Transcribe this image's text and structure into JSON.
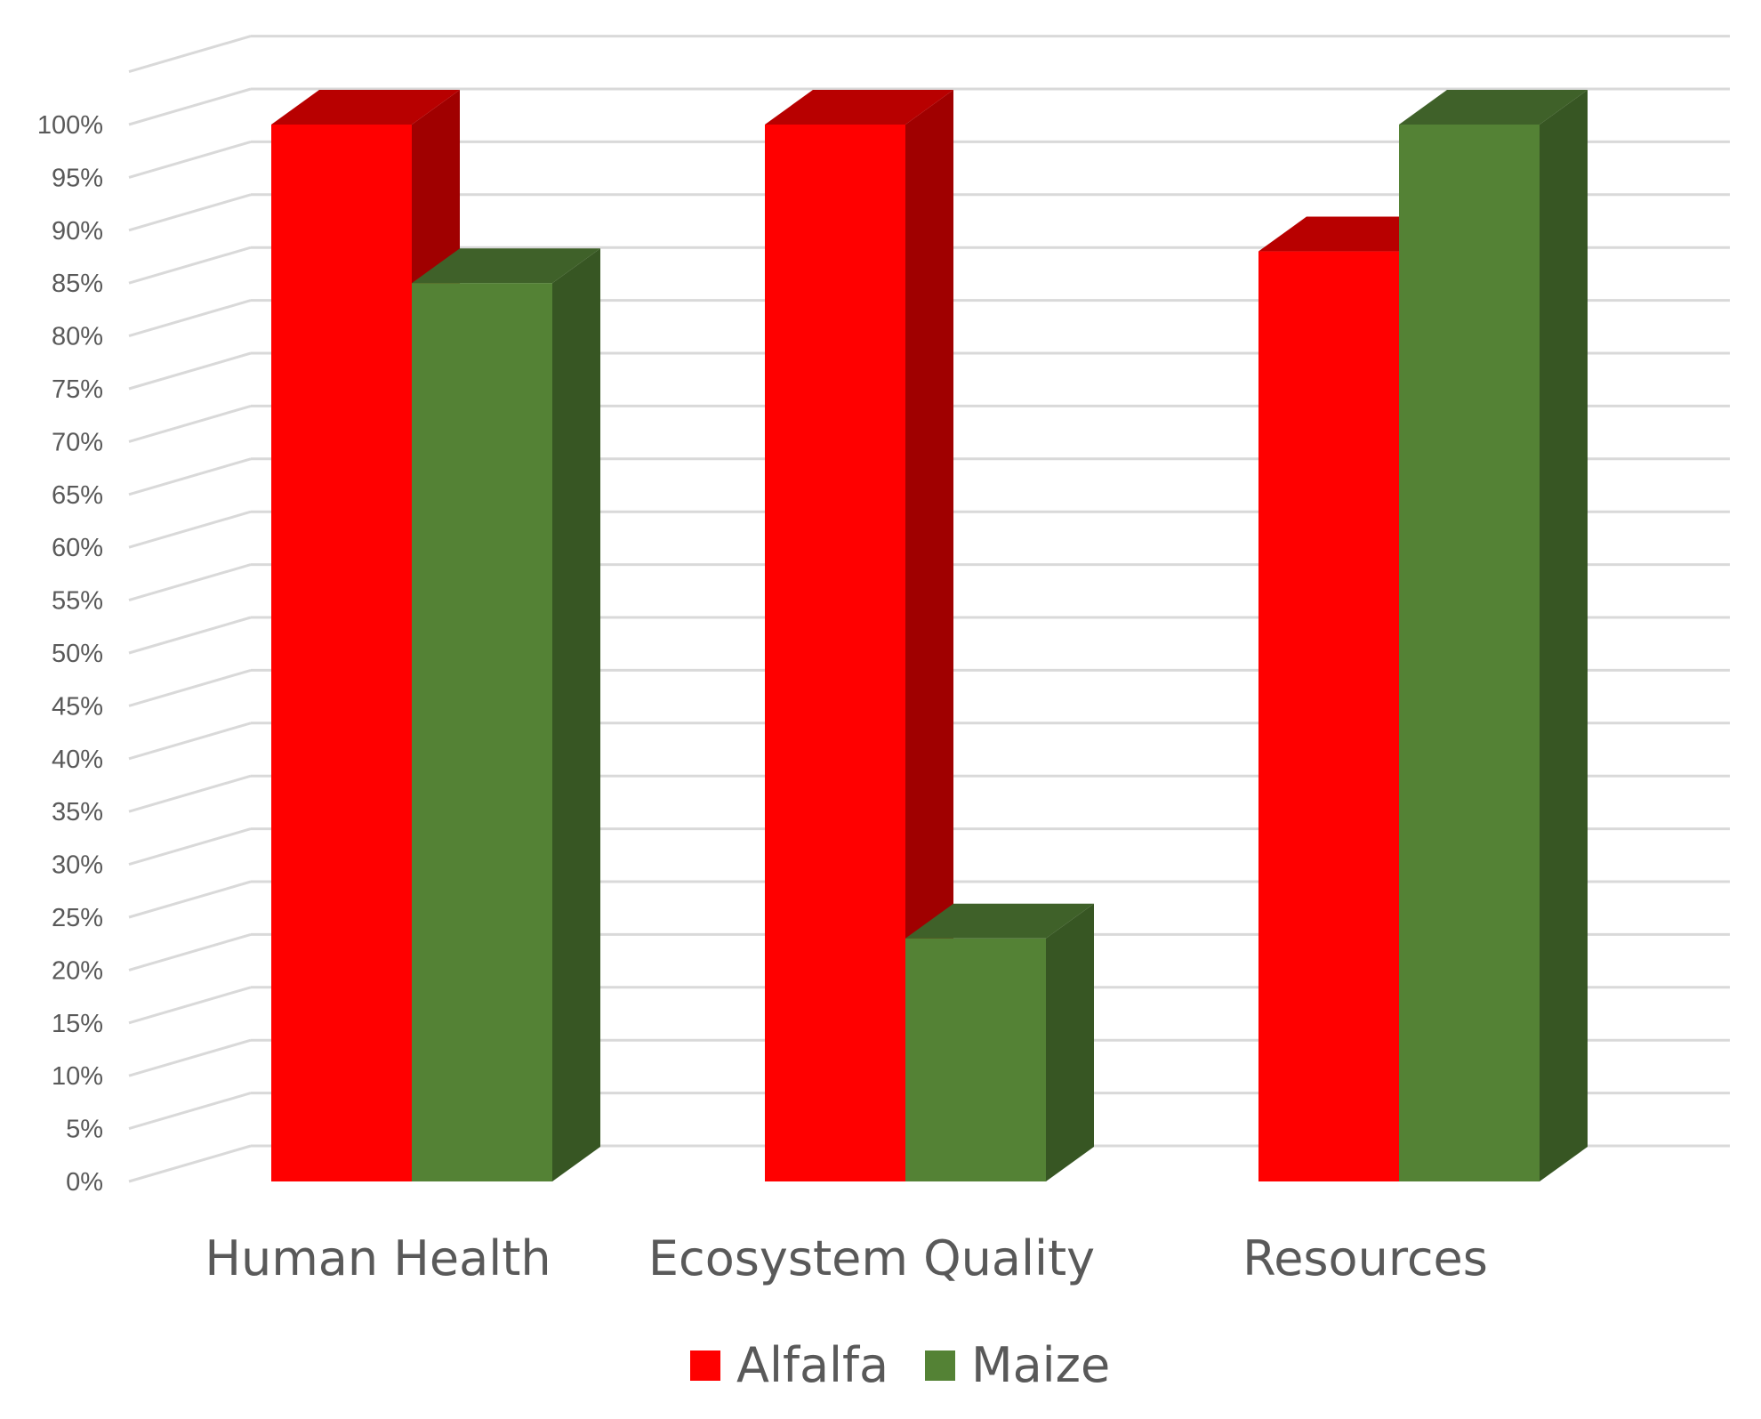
{
  "chart_data": {
    "type": "bar",
    "style": "3d-clustered-column",
    "categories": [
      "Human Health",
      "Ecosystem Quality",
      "Resources"
    ],
    "series": [
      {
        "name": "Alfalfa",
        "values": [
          100,
          100,
          88
        ],
        "color": "#ff0000",
        "side_color": "#a00000",
        "top_color": "#b80000"
      },
      {
        "name": "Maize",
        "values": [
          85,
          23,
          100
        ],
        "color": "#548235",
        "side_color": "#375623",
        "top_color": "#3f6129"
      }
    ],
    "yticks": [
      "0%",
      "5%",
      "10%",
      "15%",
      "20%",
      "25%",
      "30%",
      "35%",
      "40%",
      "45%",
      "50%",
      "55%",
      "60%",
      "65%",
      "70%",
      "75%",
      "80%",
      "85%",
      "90%",
      "95%",
      "100%"
    ],
    "ylim": [
      0,
      105
    ],
    "grid": true,
    "legend_position": "bottom",
    "gridline_color": "#d9d9d9"
  }
}
